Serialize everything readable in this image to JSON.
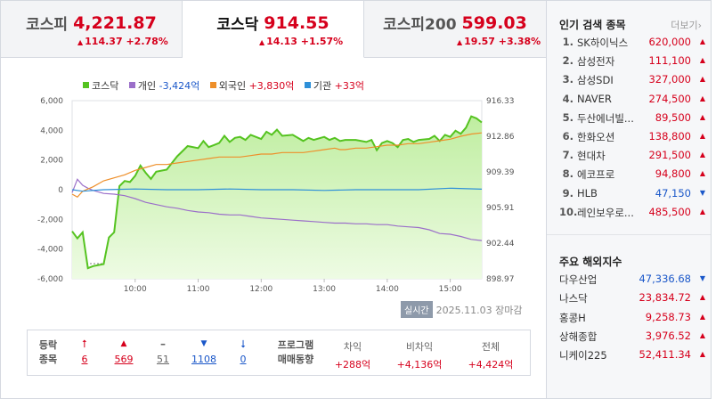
{
  "tabs": [
    {
      "name": "코스피",
      "price": "4,221.87",
      "change": "114.37",
      "pct": "+2.78%"
    },
    {
      "name": "코스닥",
      "price": "914.55",
      "change": "14.13",
      "pct": "+1.57%"
    },
    {
      "name": "코스피200",
      "price": "599.03",
      "change": "19.57",
      "pct": "+3.38%"
    }
  ],
  "legend": {
    "kosdaq": "코스닥",
    "individual_label": "개인",
    "individual_value": "-3,424억",
    "foreign_label": "외국인",
    "foreign_value": "+3,830억",
    "inst_label": "기관",
    "inst_value": "+33억"
  },
  "chart_data": {
    "type": "line",
    "x_ticks": [
      "10:00",
      "11:00",
      "12:00",
      "13:00",
      "14:00",
      "15:00"
    ],
    "left_axis_ticks": [
      "6,000",
      "4,000",
      "2,000",
      "0",
      "-2,000",
      "-4,000",
      "-6,000"
    ],
    "right_axis_ticks": [
      "916.33",
      "912.86",
      "909.39",
      "905.91",
      "902.44",
      "898.97"
    ],
    "left_ylim": [
      -6000,
      6000
    ],
    "right_ylim": [
      898.97,
      916.33
    ],
    "time_range": [
      "09:00",
      "15:30"
    ],
    "series": [
      {
        "name": "코스닥",
        "axis": "right",
        "color": "#55c320",
        "points": [
          [
            "09:00",
            903.6
          ],
          [
            "09:05",
            902.9
          ],
          [
            "09:10",
            903.5
          ],
          [
            "09:15",
            900.0
          ],
          [
            "09:20",
            900.2
          ],
          [
            "09:30",
            900.4
          ],
          [
            "09:35",
            903.0
          ],
          [
            "09:40",
            903.5
          ],
          [
            "09:45",
            908.0
          ],
          [
            "09:50",
            908.5
          ],
          [
            "09:55",
            908.4
          ],
          [
            "10:00",
            909.0
          ],
          [
            "10:05",
            910.0
          ],
          [
            "10:10",
            909.3
          ],
          [
            "10:15",
            908.7
          ],
          [
            "10:20",
            909.4
          ],
          [
            "10:30",
            909.6
          ],
          [
            "10:40",
            910.9
          ],
          [
            "10:50",
            911.9
          ],
          [
            "11:00",
            911.7
          ],
          [
            "11:05",
            912.4
          ],
          [
            "11:10",
            911.8
          ],
          [
            "11:15",
            912.0
          ],
          [
            "11:20",
            912.2
          ],
          [
            "11:25",
            912.9
          ],
          [
            "11:30",
            912.3
          ],
          [
            "11:35",
            912.7
          ],
          [
            "11:40",
            912.8
          ],
          [
            "11:45",
            912.5
          ],
          [
            "11:50",
            913.0
          ],
          [
            "12:00",
            912.6
          ],
          [
            "12:05",
            913.3
          ],
          [
            "12:10",
            913.0
          ],
          [
            "12:15",
            913.5
          ],
          [
            "12:20",
            912.9
          ],
          [
            "12:30",
            913.0
          ],
          [
            "12:40",
            912.4
          ],
          [
            "12:45",
            912.7
          ],
          [
            "12:50",
            912.5
          ],
          [
            "13:00",
            912.8
          ],
          [
            "13:05",
            912.5
          ],
          [
            "13:10",
            912.7
          ],
          [
            "13:15",
            912.4
          ],
          [
            "13:20",
            912.5
          ],
          [
            "13:30",
            912.5
          ],
          [
            "13:40",
            912.3
          ],
          [
            "13:45",
            912.5
          ],
          [
            "13:50",
            911.5
          ],
          [
            "13:55",
            912.2
          ],
          [
            "14:00",
            912.4
          ],
          [
            "14:05",
            912.2
          ],
          [
            "14:10",
            911.8
          ],
          [
            "14:15",
            912.5
          ],
          [
            "14:20",
            912.6
          ],
          [
            "14:25",
            912.3
          ],
          [
            "14:30",
            912.5
          ],
          [
            "14:40",
            912.6
          ],
          [
            "14:45",
            912.9
          ],
          [
            "14:50",
            912.4
          ],
          [
            "14:55",
            913.0
          ],
          [
            "15:00",
            912.8
          ],
          [
            "15:05",
            913.4
          ],
          [
            "15:10",
            913.1
          ],
          [
            "15:15",
            913.7
          ],
          [
            "15:20",
            914.8
          ],
          [
            "15:25",
            914.6
          ],
          [
            "15:30",
            914.2
          ]
        ]
      },
      {
        "name": "개인",
        "axis": "left",
        "color": "#9b6fc9",
        "value": "-3,424억",
        "points": [
          [
            "09:00",
            -200
          ],
          [
            "09:05",
            700
          ],
          [
            "09:10",
            300
          ],
          [
            "09:15",
            100
          ],
          [
            "09:20",
            -50
          ],
          [
            "09:30",
            -250
          ],
          [
            "09:40",
            -300
          ],
          [
            "09:50",
            -400
          ],
          [
            "10:00",
            -600
          ],
          [
            "10:10",
            -850
          ],
          [
            "10:20",
            -1000
          ],
          [
            "10:30",
            -1150
          ],
          [
            "10:40",
            -1250
          ],
          [
            "10:50",
            -1400
          ],
          [
            "11:00",
            -1500
          ],
          [
            "11:10",
            -1550
          ],
          [
            "11:20",
            -1650
          ],
          [
            "11:30",
            -1700
          ],
          [
            "11:40",
            -1700
          ],
          [
            "11:50",
            -1800
          ],
          [
            "12:00",
            -1900
          ],
          [
            "12:10",
            -1950
          ],
          [
            "12:20",
            -2000
          ],
          [
            "12:30",
            -2050
          ],
          [
            "12:40",
            -2100
          ],
          [
            "12:50",
            -2150
          ],
          [
            "13:00",
            -2200
          ],
          [
            "13:10",
            -2250
          ],
          [
            "13:20",
            -2250
          ],
          [
            "13:30",
            -2300
          ],
          [
            "13:40",
            -2300
          ],
          [
            "13:50",
            -2350
          ],
          [
            "14:00",
            -2350
          ],
          [
            "14:10",
            -2450
          ],
          [
            "14:20",
            -2500
          ],
          [
            "14:30",
            -2550
          ],
          [
            "14:40",
            -2700
          ],
          [
            "14:50",
            -2950
          ],
          [
            "15:00",
            -3000
          ],
          [
            "15:10",
            -3150
          ],
          [
            "15:20",
            -3350
          ],
          [
            "15:30",
            -3424
          ]
        ]
      },
      {
        "name": "외국인",
        "axis": "left",
        "color": "#ee8f2a",
        "value": "+3,830억",
        "points": [
          [
            "09:00",
            -300
          ],
          [
            "09:05",
            -500
          ],
          [
            "09:10",
            -100
          ],
          [
            "09:20",
            200
          ],
          [
            "09:30",
            600
          ],
          [
            "09:40",
            800
          ],
          [
            "09:50",
            1000
          ],
          [
            "10:00",
            1300
          ],
          [
            "10:10",
            1500
          ],
          [
            "10:20",
            1700
          ],
          [
            "10:30",
            1700
          ],
          [
            "10:40",
            1800
          ],
          [
            "10:50",
            1900
          ],
          [
            "11:00",
            2000
          ],
          [
            "11:10",
            2100
          ],
          [
            "11:20",
            2200
          ],
          [
            "11:30",
            2200
          ],
          [
            "11:40",
            2200
          ],
          [
            "11:50",
            2300
          ],
          [
            "12:00",
            2400
          ],
          [
            "12:10",
            2400
          ],
          [
            "12:20",
            2500
          ],
          [
            "12:30",
            2500
          ],
          [
            "12:40",
            2500
          ],
          [
            "12:50",
            2600
          ],
          [
            "13:00",
            2700
          ],
          [
            "13:10",
            2800
          ],
          [
            "13:15",
            2700
          ],
          [
            "13:20",
            2700
          ],
          [
            "13:30",
            2800
          ],
          [
            "13:40",
            2800
          ],
          [
            "13:50",
            2900
          ],
          [
            "14:00",
            3000
          ],
          [
            "14:10",
            3000
          ],
          [
            "14:20",
            3100
          ],
          [
            "14:30",
            3100
          ],
          [
            "14:40",
            3200
          ],
          [
            "14:50",
            3300
          ],
          [
            "15:00",
            3400
          ],
          [
            "15:10",
            3600
          ],
          [
            "15:20",
            3750
          ],
          [
            "15:30",
            3830
          ]
        ]
      },
      {
        "name": "기관",
        "axis": "left",
        "color": "#2e90d8",
        "value": "+33억",
        "points": [
          [
            "09:00",
            0
          ],
          [
            "09:10",
            -100
          ],
          [
            "09:30",
            0
          ],
          [
            "10:00",
            50
          ],
          [
            "10:30",
            0
          ],
          [
            "11:00",
            0
          ],
          [
            "11:30",
            50
          ],
          [
            "12:00",
            0
          ],
          [
            "12:30",
            0
          ],
          [
            "13:00",
            -50
          ],
          [
            "13:30",
            0
          ],
          [
            "14:00",
            0
          ],
          [
            "14:30",
            0
          ],
          [
            "15:00",
            100
          ],
          [
            "15:30",
            33
          ]
        ]
      }
    ]
  },
  "timestamp": {
    "badge": "실시간",
    "date": "2025.11.03",
    "status": "장마감"
  },
  "stats": {
    "label_line1": "등락",
    "label_line2": "종목",
    "upper_limit": "6",
    "up": "569",
    "flat": "51",
    "down": "1108",
    "lower_limit": "0",
    "program_label1": "프로그램",
    "program_label2": "매매동향",
    "arb_label": "차익",
    "arb_value": "+288억",
    "nonarb_label": "비차익",
    "nonarb_value": "+4,136억",
    "total_label": "전체",
    "total_value": "+4,424억"
  },
  "popular": {
    "title": "인기 검색 종목",
    "more": "더보기",
    "items": [
      {
        "rank": "1.",
        "name": "SK하이닉스",
        "price": "620,000",
        "dir": "up"
      },
      {
        "rank": "2.",
        "name": "삼성전자",
        "price": "111,100",
        "dir": "up"
      },
      {
        "rank": "3.",
        "name": "삼성SDI",
        "price": "327,000",
        "dir": "up"
      },
      {
        "rank": "4.",
        "name": "NAVER",
        "price": "274,500",
        "dir": "up"
      },
      {
        "rank": "5.",
        "name": "두산에너빌...",
        "price": "89,500",
        "dir": "up"
      },
      {
        "rank": "6.",
        "name": "한화오션",
        "price": "138,800",
        "dir": "up"
      },
      {
        "rank": "7.",
        "name": "현대차",
        "price": "291,500",
        "dir": "up"
      },
      {
        "rank": "8.",
        "name": "에코프로",
        "price": "94,800",
        "dir": "up"
      },
      {
        "rank": "9.",
        "name": "HLB",
        "price": "47,150",
        "dir": "down"
      },
      {
        "rank": "10.",
        "name": "레인보우로...",
        "price": "485,500",
        "dir": "up"
      }
    ]
  },
  "overseas": {
    "title": "주요 해외지수",
    "items": [
      {
        "name": "다우산업",
        "price": "47,336.68",
        "dir": "down"
      },
      {
        "name": "나스닥",
        "price": "23,834.72",
        "dir": "up"
      },
      {
        "name": "홍콩H",
        "price": "9,258.73",
        "dir": "up"
      },
      {
        "name": "상해종합",
        "price": "3,976.52",
        "dir": "up"
      },
      {
        "name": "니케이225",
        "price": "52,411.34",
        "dir": "up"
      }
    ]
  },
  "colors": {
    "up": "#d6001c",
    "down": "#1a57c9",
    "kosdaq_fill": "#c8f0a8"
  }
}
